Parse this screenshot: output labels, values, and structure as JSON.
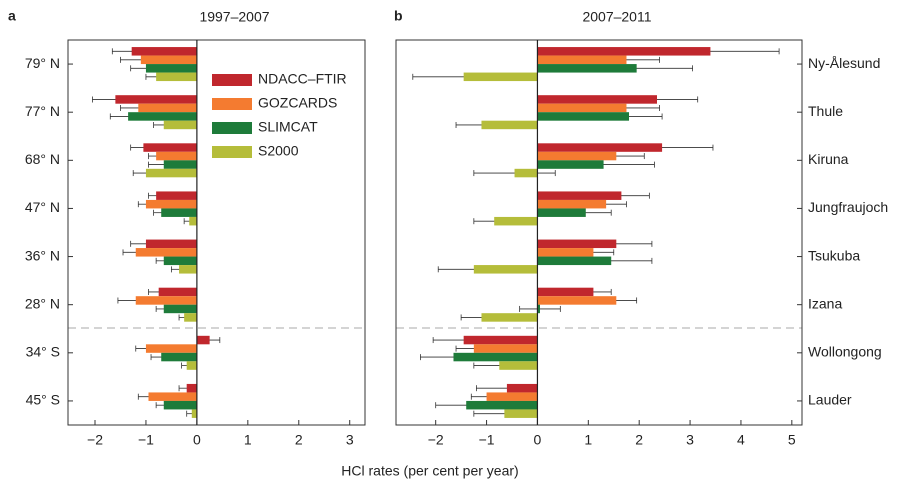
{
  "chart_data": [
    {
      "type": "bar",
      "panel": "a",
      "title": "1997–2007",
      "xlabel": "HCl rates (per cent per year)",
      "categories": [
        "79° N",
        "77° N",
        "68° N",
        "47° N",
        "36° N",
        "28° N",
        "34° S",
        "45° S"
      ],
      "series": [
        {
          "name": "NDACC–FTIR",
          "color": "#c0272d",
          "values": [
            -1.28,
            -1.6,
            -1.05,
            -0.8,
            -1.0,
            -0.75,
            0.25,
            -0.2
          ],
          "errors": [
            0.38,
            0.45,
            0.25,
            0.15,
            0.3,
            0.2,
            0.2,
            0.15
          ]
        },
        {
          "name": "GOZCARDS",
          "color": "#f47b30",
          "values": [
            -1.1,
            -1.15,
            -0.8,
            -1.0,
            -1.2,
            -1.2,
            -1.0,
            -0.95
          ],
          "errors": [
            0.4,
            0.35,
            0.15,
            0.15,
            0.25,
            0.35,
            0.2,
            0.2
          ]
        },
        {
          "name": "SLIMCAT",
          "color": "#1e7b3a",
          "values": [
            -1.0,
            -1.35,
            -0.65,
            -0.7,
            -0.65,
            -0.65,
            -0.7,
            -0.65
          ],
          "errors": [
            0.3,
            0.35,
            0.3,
            0.15,
            0.15,
            0.15,
            0.2,
            0.15
          ]
        },
        {
          "name": "S2000",
          "color": "#b5bd3a",
          "values": [
            -0.8,
            -0.65,
            -1.0,
            -0.15,
            -0.35,
            -0.25,
            -0.2,
            -0.1
          ],
          "errors": [
            0.2,
            0.2,
            0.25,
            0.1,
            0.15,
            0.1,
            0.1,
            0.1
          ]
        }
      ],
      "xlim": [
        -2.53,
        3.3
      ],
      "xticks": [
        {
          "value": -2,
          "label": "−2"
        },
        {
          "value": -1,
          "label": "−1"
        },
        0,
        1,
        2,
        3
      ]
    },
    {
      "type": "bar",
      "panel": "b",
      "title": "2007–2011",
      "categories": [
        "Ny-Ålesund",
        "Thule",
        "Kiruna",
        "Jungfraujoch",
        "Tsukuba",
        "Izana",
        "Wollongong",
        "Lauder"
      ],
      "series": [
        {
          "color": "#c0272d",
          "values": [
            3.4,
            2.35,
            2.45,
            1.65,
            1.55,
            1.1,
            -1.45,
            -0.6
          ],
          "errors": [
            1.35,
            0.8,
            1.0,
            0.55,
            0.7,
            0.35,
            0.6,
            0.6
          ]
        },
        {
          "color": "#f47b30",
          "values": [
            1.75,
            1.75,
            1.55,
            1.35,
            1.1,
            1.55,
            -1.25,
            -1.0
          ],
          "errors": [
            0.65,
            0.65,
            0.55,
            0.4,
            0.4,
            0.4,
            0.35,
            0.3
          ]
        },
        {
          "color": "#1e7b3a",
          "values": [
            1.95,
            1.8,
            1.3,
            0.95,
            1.45,
            0.05,
            -1.65,
            -1.4
          ],
          "errors": [
            1.1,
            0.65,
            1.0,
            0.5,
            0.8,
            0.4,
            0.65,
            0.6
          ]
        },
        {
          "color": "#b5bd3a",
          "values": [
            -1.45,
            -1.1,
            -0.45,
            -0.85,
            -1.25,
            -1.1,
            -0.75,
            -0.65
          ],
          "errors": [
            1.0,
            0.5,
            0.8,
            0.4,
            0.7,
            0.4,
            0.5,
            0.6
          ]
        }
      ],
      "xlim": [
        -2.78,
        5.2
      ],
      "xticks": [
        {
          "value": -2,
          "label": "−2"
        },
        {
          "value": -1,
          "label": "−1"
        },
        0,
        1,
        2,
        3,
        4,
        5
      ]
    }
  ]
}
